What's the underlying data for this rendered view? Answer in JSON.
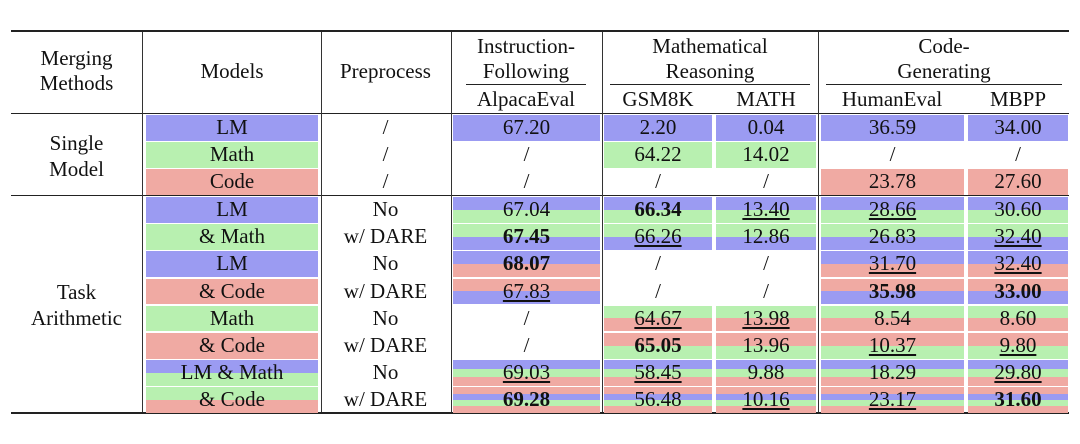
{
  "colors": {
    "lm": "#9b9bf2",
    "math": "#b8f0b0",
    "code": "#f0aaa3"
  },
  "header": {
    "merging_methods": "Merging\nMethods",
    "models": "Models",
    "preprocess": "Preprocess",
    "groups": [
      "Instruction-\nFollowing",
      "Mathematical\nReasoning",
      "Code-\nGenerating"
    ],
    "benchmarks": [
      "AlpacaEval",
      "GSM8K",
      "MATH",
      "HumanEval",
      "MBPP"
    ]
  },
  "sections": [
    {
      "method": "Single\nModel",
      "rows": [
        {
          "model": "LM",
          "model_colors": [
            "lm"
          ],
          "preprocess": "/",
          "cells": [
            {
              "v": "67.20",
              "c": [
                "lm"
              ]
            },
            {
              "v": "2.20",
              "c": [
                "lm"
              ]
            },
            {
              "v": "0.04",
              "c": [
                "lm"
              ]
            },
            {
              "v": "36.59",
              "c": [
                "lm"
              ]
            },
            {
              "v": "34.00",
              "c": [
                "lm"
              ]
            }
          ]
        },
        {
          "model": "Math",
          "model_colors": [
            "math"
          ],
          "preprocess": "/",
          "cells": [
            {
              "v": "/"
            },
            {
              "v": "64.22",
              "c": [
                "math"
              ]
            },
            {
              "v": "14.02",
              "c": [
                "math"
              ]
            },
            {
              "v": "/"
            },
            {
              "v": "/"
            }
          ]
        },
        {
          "model": "Code",
          "model_colors": [
            "code"
          ],
          "preprocess": "/",
          "cells": [
            {
              "v": "/"
            },
            {
              "v": "/"
            },
            {
              "v": "/"
            },
            {
              "v": "23.78",
              "c": [
                "code"
              ]
            },
            {
              "v": "27.60",
              "c": [
                "code"
              ]
            }
          ]
        }
      ]
    },
    {
      "method": "Task\nArithmetic",
      "rows": [
        {
          "model": "LM",
          "model_colors": [
            "lm"
          ],
          "preprocess": "No",
          "cells": [
            {
              "v": "67.04",
              "c": [
                "lm",
                "math"
              ]
            },
            {
              "v": "66.34",
              "c": [
                "lm",
                "math"
              ],
              "b": true
            },
            {
              "v": "13.40",
              "c": [
                "lm",
                "math"
              ],
              "u": true
            },
            {
              "v": "28.66",
              "c": [
                "lm",
                "math"
              ],
              "u": true
            },
            {
              "v": "30.60",
              "c": [
                "lm",
                "math"
              ]
            }
          ]
        },
        {
          "model": "& Math",
          "model_colors": [
            "math"
          ],
          "preprocess": "w/ DARE",
          "cells": [
            {
              "v": "67.45",
              "c": [
                "math",
                "lm"
              ],
              "b": true
            },
            {
              "v": "66.26",
              "c": [
                "math",
                "lm"
              ],
              "u": true
            },
            {
              "v": "12.86",
              "c": [
                "math",
                "lm"
              ]
            },
            {
              "v": "26.83",
              "c": [
                "math",
                "lm"
              ]
            },
            {
              "v": "32.40",
              "c": [
                "math",
                "lm"
              ],
              "u": true
            }
          ]
        },
        {
          "model": "LM",
          "model_colors": [
            "lm"
          ],
          "preprocess": "No",
          "cells": [
            {
              "v": "68.07",
              "c": [
                "lm",
                "code"
              ],
              "b": true
            },
            {
              "v": "/"
            },
            {
              "v": "/"
            },
            {
              "v": "31.70",
              "c": [
                "lm",
                "code"
              ],
              "u": true
            },
            {
              "v": "32.40",
              "c": [
                "lm",
                "code"
              ],
              "u": true
            }
          ]
        },
        {
          "model": "& Code",
          "model_colors": [
            "code"
          ],
          "preprocess": "w/ DARE",
          "cells": [
            {
              "v": "67.83",
              "c": [
                "code",
                "lm"
              ],
              "u": true
            },
            {
              "v": "/"
            },
            {
              "v": "/"
            },
            {
              "v": "35.98",
              "c": [
                "code",
                "lm"
              ],
              "b": true
            },
            {
              "v": "33.00",
              "c": [
                "code",
                "lm"
              ],
              "b": true
            }
          ]
        },
        {
          "model": "Math",
          "model_colors": [
            "math"
          ],
          "preprocess": "No",
          "cells": [
            {
              "v": "/"
            },
            {
              "v": "64.67",
              "c": [
                "math",
                "code"
              ],
              "u": true
            },
            {
              "v": "13.98",
              "c": [
                "math",
                "code"
              ],
              "u": true
            },
            {
              "v": "8.54",
              "c": [
                "math",
                "code"
              ]
            },
            {
              "v": "8.60",
              "c": [
                "math",
                "code"
              ]
            }
          ]
        },
        {
          "model": "& Code",
          "model_colors": [
            "code"
          ],
          "preprocess": "w/ DARE",
          "cells": [
            {
              "v": "/"
            },
            {
              "v": "65.05",
              "c": [
                "code",
                "math"
              ],
              "b": true
            },
            {
              "v": "13.96",
              "c": [
                "code",
                "math"
              ]
            },
            {
              "v": "10.37",
              "c": [
                "code",
                "math"
              ],
              "u": true
            },
            {
              "v": "9.80",
              "c": [
                "code",
                "math"
              ],
              "u": true
            }
          ]
        },
        {
          "model": "LM & Math",
          "model_colors": [
            "lm",
            "math"
          ],
          "preprocess": "No",
          "cells": [
            {
              "v": "69.03",
              "c": [
                "lm",
                "math",
                "code"
              ],
              "u": true
            },
            {
              "v": "58.45",
              "c": [
                "lm",
                "math",
                "code"
              ],
              "u": true
            },
            {
              "v": "9.88",
              "c": [
                "lm",
                "math",
                "code"
              ]
            },
            {
              "v": "18.29",
              "c": [
                "lm",
                "math",
                "code"
              ]
            },
            {
              "v": "29.80",
              "c": [
                "lm",
                "math",
                "code"
              ],
              "u": true
            }
          ]
        },
        {
          "model": "& Code",
          "model_colors": [
            "math",
            "code"
          ],
          "preprocess": "w/ DARE",
          "cells": [
            {
              "v": "69.28",
              "c": [
                "code",
                "lm",
                "math",
                "code"
              ],
              "b": true
            },
            {
              "v": "56.48",
              "c": [
                "code",
                "lm",
                "math",
                "code"
              ]
            },
            {
              "v": "10.16",
              "c": [
                "code",
                "lm",
                "math",
                "code"
              ],
              "u": true
            },
            {
              "v": "23.17",
              "c": [
                "code",
                "lm",
                "math",
                "code"
              ],
              "u": true
            },
            {
              "v": "31.60",
              "c": [
                "code",
                "lm",
                "math",
                "code"
              ],
              "b": true
            }
          ]
        }
      ]
    }
  ]
}
